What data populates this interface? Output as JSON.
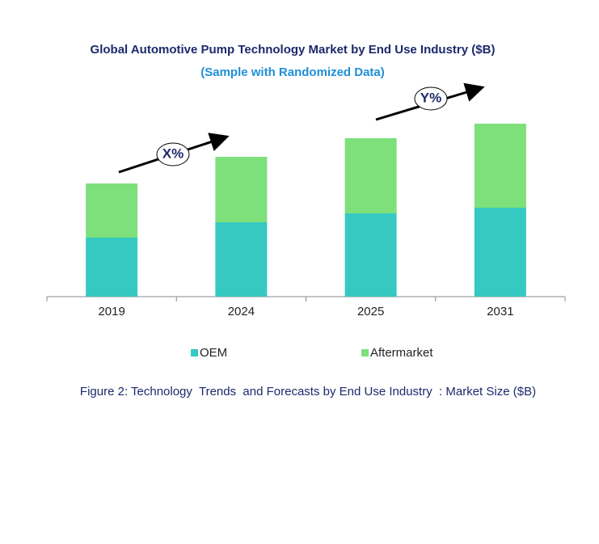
{
  "chart_data": {
    "type": "stacked-bar",
    "title": "Global Automotive Pump Technology Market by End Use Industry ($B)",
    "subtitle": "(Sample with Randomized Data)",
    "categories": [
      "2019",
      "2024",
      "2025",
      "2031"
    ],
    "series": [
      {
        "name": "OEM",
        "color": "#36c9c2",
        "values": [
          73,
          92,
          103,
          110
        ]
      },
      {
        "name": "Aftermarket",
        "color": "#7de07b",
        "values": [
          67,
          81,
          93,
          104
        ]
      }
    ],
    "ylim": [
      0,
      240
    ],
    "annotations": [
      "X%",
      "Y%"
    ],
    "caption": "Figure 2: Technology  Trends  and Forecasts by End Use Industry  : Market Size ($B)"
  }
}
